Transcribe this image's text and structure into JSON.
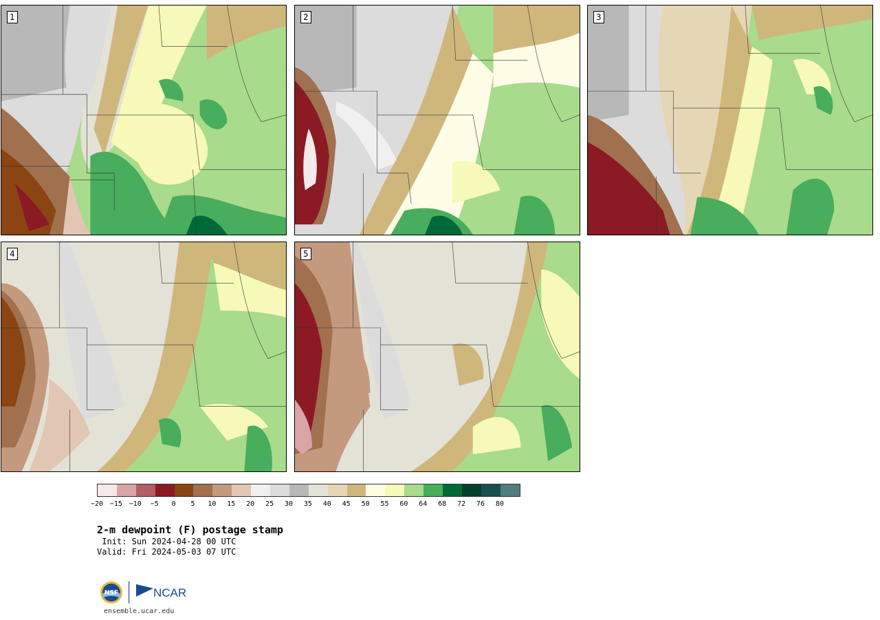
{
  "panels": [
    {
      "label": "1"
    },
    {
      "label": "2"
    },
    {
      "label": "3"
    },
    {
      "label": "4"
    },
    {
      "label": "5"
    }
  ],
  "colorbar": {
    "colors": [
      "#f5e9ea",
      "#d8a4a8",
      "#b35d66",
      "#8b1a24",
      "#8b4513",
      "#a0704f",
      "#c49a7f",
      "#e2c6b4",
      "#f0f0f0",
      "#dcdcdc",
      "#b8b8b8",
      "#e3e2d6",
      "#e5d7b5",
      "#cfb77c",
      "#fffde6",
      "#f6f9b8",
      "#a8db8b",
      "#48ad5c",
      "#00693a",
      "#00402a",
      "#1b4f4f",
      "#527d7d"
    ],
    "tick_labels": [
      "−20",
      "−15",
      "−10",
      "−5",
      "0",
      "5",
      "10",
      "15",
      "20",
      "25",
      "30",
      "35",
      "40",
      "45",
      "50",
      "55",
      "60",
      "64",
      "68",
      "72",
      "76",
      "80"
    ]
  },
  "title": "2-m dewpoint (F) postage stamp",
  "init": " Init: Sun 2024-04-28 00 UTC",
  "valid": "Valid: Fri 2024-05-03 07 UTC",
  "logo": {
    "nsf": "NSF",
    "ncar": "NCAR"
  },
  "site": "ensemble.ucar.edu"
}
